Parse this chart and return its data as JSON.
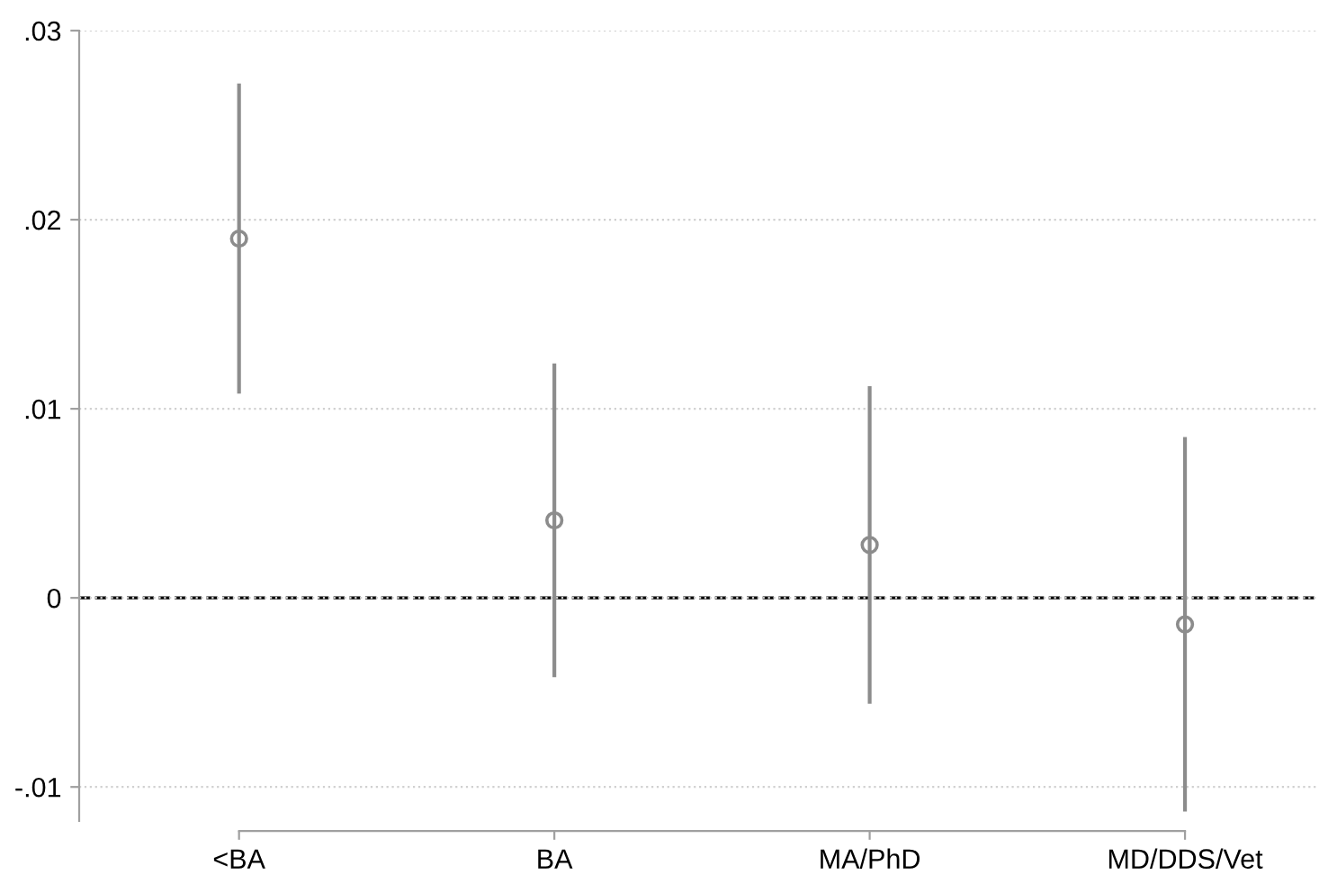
{
  "chart_data": {
    "type": "scatter",
    "categories": [
      "<BA",
      "BA",
      "MA/PhD",
      "MD/DDS/Vet"
    ],
    "series": [
      {
        "color": "#8c8c8c",
        "values": [
          0.019,
          0.0041,
          0.0028,
          -0.0014
        ],
        "errors": [
          0.0082,
          0.0083,
          0.0084,
          0.0099
        ]
      }
    ],
    "ylim": [
      -0.0118,
      0.03
    ],
    "yticks": [
      {
        "value": -0.01,
        "label": "-.01"
      },
      0,
      {
        "value": 0.01,
        "label": ".01"
      },
      {
        "value": 0.02,
        "label": ".02"
      },
      {
        "value": 0.03,
        "label": ".03"
      }
    ],
    "ref_lines": [
      {
        "axis": "y",
        "value": 0,
        "color": "#000000",
        "line_style": "dashed"
      }
    ],
    "grid": "y",
    "marker": "circle"
  }
}
